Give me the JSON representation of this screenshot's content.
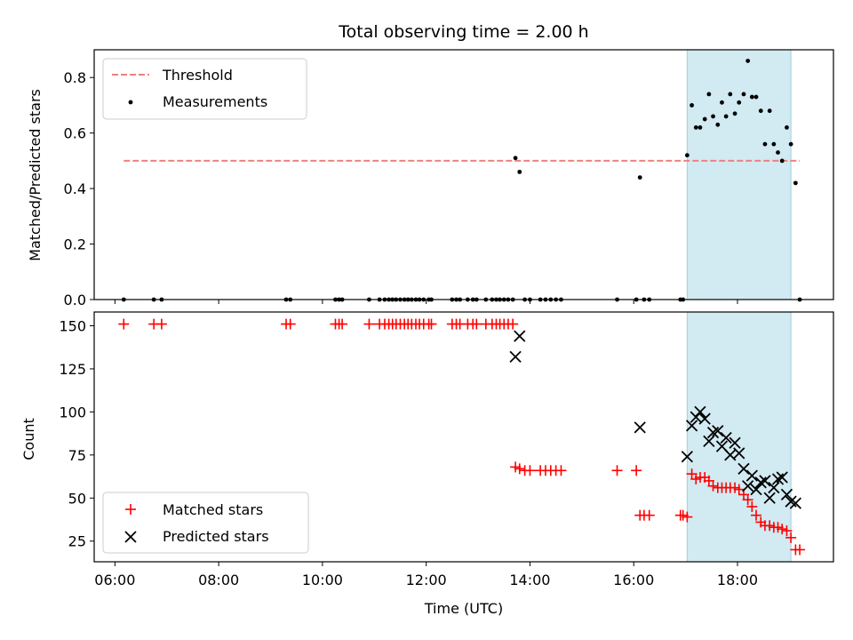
{
  "chart_data": [
    {
      "type": "scatter",
      "title": "Total observing time = 2.00 h",
      "ylabel": "Matched/Predicted stars",
      "xlabel": "",
      "xlim": [
        5.6,
        19.85
      ],
      "ylim": [
        0.0,
        0.9
      ],
      "yticks": [
        "0.0",
        "0.2",
        "0.4",
        "0.6",
        "0.8"
      ],
      "grid": false,
      "legend_placement": "top-left",
      "highlight_span": {
        "x": [
          17.03,
          19.03
        ],
        "color": "#add8e6"
      },
      "threshold": {
        "name": "Threshold",
        "value": 0.5,
        "x": [
          6.17,
          19.2
        ],
        "color": "#f08080"
      },
      "series": [
        {
          "name": "Measurements",
          "color": "#000000",
          "points": [
            [
              6.17,
              0.0
            ],
            [
              6.75,
              0.0
            ],
            [
              6.9,
              0.0
            ],
            [
              9.3,
              0.0
            ],
            [
              9.38,
              0.0
            ],
            [
              10.25,
              0.0
            ],
            [
              10.32,
              0.0
            ],
            [
              10.38,
              0.0
            ],
            [
              10.9,
              0.0
            ],
            [
              11.1,
              0.0
            ],
            [
              11.2,
              0.0
            ],
            [
              11.28,
              0.0
            ],
            [
              11.35,
              0.0
            ],
            [
              11.42,
              0.0
            ],
            [
              11.5,
              0.0
            ],
            [
              11.58,
              0.0
            ],
            [
              11.65,
              0.0
            ],
            [
              11.72,
              0.0
            ],
            [
              11.8,
              0.0
            ],
            [
              11.87,
              0.0
            ],
            [
              11.95,
              0.0
            ],
            [
              12.05,
              0.0
            ],
            [
              12.1,
              0.0
            ],
            [
              12.5,
              0.0
            ],
            [
              12.58,
              0.0
            ],
            [
              12.65,
              0.0
            ],
            [
              12.8,
              0.0
            ],
            [
              12.9,
              0.0
            ],
            [
              12.97,
              0.0
            ],
            [
              13.15,
              0.0
            ],
            [
              13.27,
              0.0
            ],
            [
              13.35,
              0.0
            ],
            [
              13.42,
              0.0
            ],
            [
              13.5,
              0.0
            ],
            [
              13.58,
              0.0
            ],
            [
              13.67,
              0.0
            ],
            [
              13.72,
              0.51
            ],
            [
              13.8,
              0.46
            ],
            [
              13.9,
              0.0
            ],
            [
              14.0,
              0.0
            ],
            [
              14.2,
              0.0
            ],
            [
              14.3,
              0.0
            ],
            [
              14.4,
              0.0
            ],
            [
              14.5,
              0.0
            ],
            [
              14.6,
              0.0
            ],
            [
              15.68,
              0.0
            ],
            [
              16.05,
              0.0
            ],
            [
              16.12,
              0.44
            ],
            [
              16.2,
              0.0
            ],
            [
              16.3,
              0.0
            ],
            [
              16.9,
              0.0
            ],
            [
              16.95,
              0.0
            ],
            [
              17.03,
              0.52
            ],
            [
              17.12,
              0.7
            ],
            [
              17.2,
              0.62
            ],
            [
              17.28,
              0.62
            ],
            [
              17.37,
              0.65
            ],
            [
              17.45,
              0.74
            ],
            [
              17.53,
              0.66
            ],
            [
              17.62,
              0.63
            ],
            [
              17.7,
              0.71
            ],
            [
              17.78,
              0.66
            ],
            [
              17.86,
              0.74
            ],
            [
              17.95,
              0.67
            ],
            [
              18.03,
              0.71
            ],
            [
              18.12,
              0.74
            ],
            [
              18.2,
              0.86
            ],
            [
              18.28,
              0.73
            ],
            [
              18.36,
              0.73
            ],
            [
              18.45,
              0.68
            ],
            [
              18.53,
              0.56
            ],
            [
              18.62,
              0.68
            ],
            [
              18.7,
              0.56
            ],
            [
              18.78,
              0.53
            ],
            [
              18.86,
              0.5
            ],
            [
              18.95,
              0.62
            ],
            [
              19.03,
              0.56
            ],
            [
              19.12,
              0.42
            ],
            [
              19.2,
              0.0
            ]
          ]
        }
      ]
    },
    {
      "type": "scatter",
      "title": "",
      "ylabel": "Count",
      "xlabel": "Time (UTC)",
      "xlim": [
        5.6,
        19.85
      ],
      "ylim": [
        13,
        158
      ],
      "yticks": [
        "25",
        "50",
        "75",
        "100",
        "125",
        "150"
      ],
      "xticks": [
        "06:00",
        "08:00",
        "10:00",
        "12:00",
        "14:00",
        "16:00",
        "18:00"
      ],
      "grid": false,
      "legend_placement": "bottom-left",
      "highlight_span": {
        "x": [
          17.03,
          19.03
        ],
        "color": "#add8e6"
      },
      "series": [
        {
          "name": "Matched stars",
          "marker": "plus",
          "color": "#ff0000",
          "points": [
            [
              6.17,
              151
            ],
            [
              6.75,
              151
            ],
            [
              6.9,
              151
            ],
            [
              9.3,
              151
            ],
            [
              9.38,
              151
            ],
            [
              10.25,
              151
            ],
            [
              10.32,
              151
            ],
            [
              10.38,
              151
            ],
            [
              10.9,
              151
            ],
            [
              11.1,
              151
            ],
            [
              11.2,
              151
            ],
            [
              11.28,
              151
            ],
            [
              11.35,
              151
            ],
            [
              11.42,
              151
            ],
            [
              11.5,
              151
            ],
            [
              11.58,
              151
            ],
            [
              11.65,
              151
            ],
            [
              11.72,
              151
            ],
            [
              11.8,
              151
            ],
            [
              11.87,
              151
            ],
            [
              11.95,
              151
            ],
            [
              12.05,
              151
            ],
            [
              12.1,
              151
            ],
            [
              12.5,
              151
            ],
            [
              12.58,
              151
            ],
            [
              12.65,
              151
            ],
            [
              12.8,
              151
            ],
            [
              12.9,
              151
            ],
            [
              12.97,
              151
            ],
            [
              13.15,
              151
            ],
            [
              13.27,
              151
            ],
            [
              13.35,
              151
            ],
            [
              13.42,
              151
            ],
            [
              13.5,
              151
            ],
            [
              13.58,
              151
            ],
            [
              13.67,
              151
            ],
            [
              13.72,
              68
            ],
            [
              13.8,
              67
            ],
            [
              13.9,
              66
            ],
            [
              14.0,
              66
            ],
            [
              14.2,
              66
            ],
            [
              14.3,
              66
            ],
            [
              14.4,
              66
            ],
            [
              14.5,
              66
            ],
            [
              14.6,
              66
            ],
            [
              15.68,
              66
            ],
            [
              16.05,
              66
            ],
            [
              16.12,
              40
            ],
            [
              16.2,
              40
            ],
            [
              16.3,
              40
            ],
            [
              16.9,
              40
            ],
            [
              16.95,
              40
            ],
            [
              17.03,
              39
            ],
            [
              17.12,
              64
            ],
            [
              17.2,
              61
            ],
            [
              17.28,
              62
            ],
            [
              17.37,
              62
            ],
            [
              17.45,
              60
            ],
            [
              17.53,
              57
            ],
            [
              17.62,
              56
            ],
            [
              17.7,
              56
            ],
            [
              17.78,
              56
            ],
            [
              17.86,
              56
            ],
            [
              17.95,
              56
            ],
            [
              18.03,
              55
            ],
            [
              18.12,
              52
            ],
            [
              18.2,
              49
            ],
            [
              18.28,
              45
            ],
            [
              18.36,
              40
            ],
            [
              18.45,
              36
            ],
            [
              18.53,
              34
            ],
            [
              18.62,
              34
            ],
            [
              18.7,
              33
            ],
            [
              18.78,
              33
            ],
            [
              18.86,
              32
            ],
            [
              18.95,
              31
            ],
            [
              19.03,
              27
            ],
            [
              19.12,
              20
            ],
            [
              19.2,
              20
            ]
          ]
        },
        {
          "name": "Predicted stars",
          "marker": "x",
          "color": "#000000",
          "points": [
            [
              13.72,
              132
            ],
            [
              13.8,
              144
            ],
            [
              16.12,
              91
            ],
            [
              17.03,
              74
            ],
            [
              17.12,
              92
            ],
            [
              17.2,
              97
            ],
            [
              17.28,
              100
            ],
            [
              17.37,
              96
            ],
            [
              17.45,
              83
            ],
            [
              17.53,
              88
            ],
            [
              17.62,
              89
            ],
            [
              17.7,
              80
            ],
            [
              17.78,
              85
            ],
            [
              17.86,
              75
            ],
            [
              17.95,
              82
            ],
            [
              18.03,
              76
            ],
            [
              18.12,
              67
            ],
            [
              18.2,
              57
            ],
            [
              18.28,
              63
            ],
            [
              18.36,
              55
            ],
            [
              18.45,
              59
            ],
            [
              18.53,
              60
            ],
            [
              18.62,
              50
            ],
            [
              18.7,
              56
            ],
            [
              18.78,
              61
            ],
            [
              18.86,
              62
            ],
            [
              18.95,
              52
            ],
            [
              19.03,
              48
            ],
            [
              19.12,
              47
            ]
          ]
        }
      ]
    }
  ]
}
